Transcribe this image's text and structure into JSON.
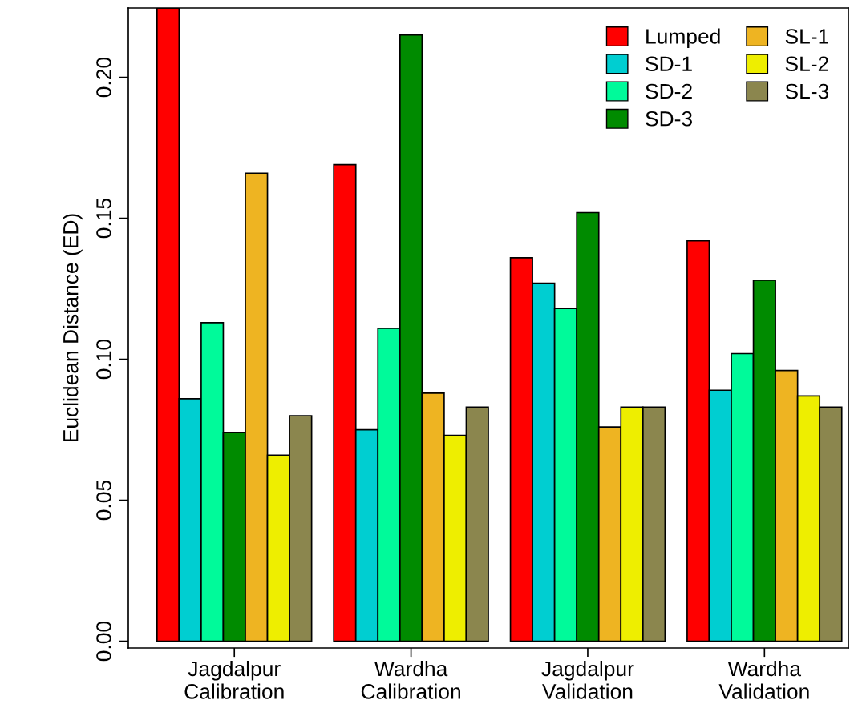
{
  "chart_data": {
    "type": "bar",
    "ylabel": "Euclidean Distance (ED)",
    "categories": [
      "Jagdalpur\nCalibration",
      "Wardha\nCalibration",
      "Jagdalpur\nValidation",
      "Wardha\nValidation"
    ],
    "series": [
      {
        "name": "Lumped",
        "color": "#ff0000",
        "values": [
          0.2246,
          0.169,
          0.136,
          0.142
        ]
      },
      {
        "name": "SD-1",
        "color": "#00ced1",
        "values": [
          0.086,
          0.075,
          0.127,
          0.089
        ]
      },
      {
        "name": "SD-2",
        "color": "#00fa9a",
        "values": [
          0.113,
          0.111,
          0.118,
          0.102
        ]
      },
      {
        "name": "SD-3",
        "color": "#008b00",
        "values": [
          0.074,
          0.215,
          0.152,
          0.128
        ]
      },
      {
        "name": "SL-1",
        "color": "#eeb422",
        "values": [
          0.166,
          0.088,
          0.076,
          0.096
        ]
      },
      {
        "name": "SL-2",
        "color": "#eeee00",
        "values": [
          0.066,
          0.073,
          0.083,
          0.087
        ]
      },
      {
        "name": "SL-3",
        "color": "#8b864e",
        "values": [
          0.08,
          0.083,
          0.083,
          0.083
        ]
      }
    ],
    "ylim": [
      -0.0024,
      0.2246
    ],
    "yticks": [
      {
        "value": 0,
        "label": "0.00"
      },
      {
        "value": 0.05,
        "label": "0.05"
      },
      {
        "value": 0.1,
        "label": "0.10"
      },
      {
        "value": 0.15,
        "label": "0.15"
      },
      {
        "value": 0.2,
        "label": "0.20"
      }
    ],
    "grid": false,
    "legend": "top right"
  }
}
